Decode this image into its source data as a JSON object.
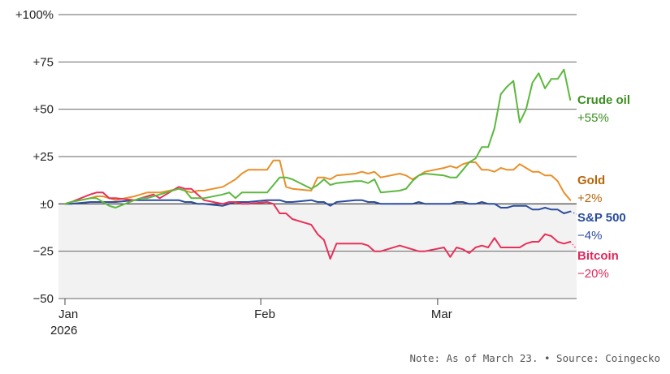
{
  "chart_data": {
    "type": "line",
    "y_ticks": [
      {
        "value": 100,
        "label": "+100%"
      },
      {
        "value": 75,
        "label": "+75"
      },
      {
        "value": 50,
        "label": "+50"
      },
      {
        "value": 25,
        "label": "+25"
      },
      {
        "value": 0,
        "label": "±0"
      },
      {
        "value": -25,
        "label": "−25"
      },
      {
        "value": -50,
        "label": "−50"
      }
    ],
    "ylim": [
      -50,
      100
    ],
    "xlim": [
      "2026-01-01",
      "2026-03-23"
    ],
    "x_ticks": [
      {
        "date": "2026-01-01",
        "label": "Jan",
        "sublabel": "2026"
      },
      {
        "date": "2026-02-01",
        "label": "Feb",
        "sublabel": ""
      },
      {
        "date": "2026-03-01",
        "label": "Mar",
        "sublabel": ""
      }
    ],
    "negative_region_shaded": true,
    "series": [
      {
        "name": "Crude oil",
        "change_label": "+55%",
        "color": "#5cb83f",
        "label_color": "#3a8f1f",
        "points": [
          [
            "2026-01-01",
            0
          ],
          [
            "2026-01-02",
            1
          ],
          [
            "2026-01-05",
            3
          ],
          [
            "2026-01-06",
            3
          ],
          [
            "2026-01-07",
            1
          ],
          [
            "2026-01-08",
            -1
          ],
          [
            "2026-01-09",
            -2
          ],
          [
            "2026-01-12",
            2
          ],
          [
            "2026-01-13",
            3
          ],
          [
            "2026-01-14",
            3
          ],
          [
            "2026-01-15",
            4
          ],
          [
            "2026-01-16",
            5
          ],
          [
            "2026-01-19",
            8
          ],
          [
            "2026-01-20",
            7
          ],
          [
            "2026-01-21",
            3
          ],
          [
            "2026-01-22",
            3
          ],
          [
            "2026-01-23",
            3
          ],
          [
            "2026-01-26",
            5
          ],
          [
            "2026-01-27",
            6
          ],
          [
            "2026-01-28",
            3
          ],
          [
            "2026-01-29",
            6
          ],
          [
            "2026-01-30",
            6
          ],
          [
            "2026-02-02",
            6
          ],
          [
            "2026-02-03",
            10
          ],
          [
            "2026-02-04",
            14
          ],
          [
            "2026-02-05",
            14
          ],
          [
            "2026-02-06",
            13
          ],
          [
            "2026-02-09",
            8
          ],
          [
            "2026-02-10",
            10
          ],
          [
            "2026-02-11",
            13
          ],
          [
            "2026-02-12",
            10
          ],
          [
            "2026-02-13",
            11
          ],
          [
            "2026-02-16",
            12
          ],
          [
            "2026-02-17",
            12
          ],
          [
            "2026-02-18",
            11
          ],
          [
            "2026-02-19",
            13
          ],
          [
            "2026-02-20",
            6
          ],
          [
            "2026-02-23",
            7
          ],
          [
            "2026-02-24",
            8
          ],
          [
            "2026-02-25",
            12
          ],
          [
            "2026-02-26",
            15
          ],
          [
            "2026-02-27",
            16
          ],
          [
            "2026-03-02",
            15
          ],
          [
            "2026-03-03",
            14
          ],
          [
            "2026-03-04",
            14
          ],
          [
            "2026-03-05",
            18
          ],
          [
            "2026-03-06",
            22
          ],
          [
            "2026-03-07",
            24
          ],
          [
            "2026-03-08",
            30
          ],
          [
            "2026-03-09",
            30
          ],
          [
            "2026-03-10",
            40
          ],
          [
            "2026-03-11",
            58
          ],
          [
            "2026-03-12",
            62
          ],
          [
            "2026-03-13",
            65
          ],
          [
            "2026-03-14",
            43
          ],
          [
            "2026-03-15",
            50
          ],
          [
            "2026-03-16",
            64
          ],
          [
            "2026-03-17",
            69
          ],
          [
            "2026-03-18",
            61
          ],
          [
            "2026-03-19",
            66
          ],
          [
            "2026-03-20",
            66
          ],
          [
            "2026-03-21",
            71
          ],
          [
            "2026-03-22",
            55
          ]
        ]
      },
      {
        "name": "Gold",
        "change_label": "+2%",
        "color": "#e8902a",
        "label_color": "#b8650a",
        "points": [
          [
            "2026-01-01",
            0
          ],
          [
            "2026-01-02",
            1
          ],
          [
            "2026-01-05",
            3
          ],
          [
            "2026-01-06",
            4
          ],
          [
            "2026-01-07",
            4
          ],
          [
            "2026-01-08",
            3
          ],
          [
            "2026-01-09",
            2
          ],
          [
            "2026-01-12",
            4
          ],
          [
            "2026-01-13",
            5
          ],
          [
            "2026-01-14",
            6
          ],
          [
            "2026-01-15",
            6
          ],
          [
            "2026-01-16",
            6
          ],
          [
            "2026-01-19",
            8
          ],
          [
            "2026-01-20",
            7
          ],
          [
            "2026-01-21",
            6
          ],
          [
            "2026-01-22",
            7
          ],
          [
            "2026-01-23",
            7
          ],
          [
            "2026-01-26",
            9
          ],
          [
            "2026-01-27",
            11
          ],
          [
            "2026-01-28",
            13
          ],
          [
            "2026-01-29",
            16
          ],
          [
            "2026-01-30",
            18
          ],
          [
            "2026-02-02",
            18
          ],
          [
            "2026-02-03",
            23
          ],
          [
            "2026-02-04",
            23
          ],
          [
            "2026-02-05",
            9
          ],
          [
            "2026-02-06",
            8
          ],
          [
            "2026-02-09",
            7
          ],
          [
            "2026-02-10",
            14
          ],
          [
            "2026-02-11",
            14
          ],
          [
            "2026-02-12",
            13
          ],
          [
            "2026-02-13",
            15
          ],
          [
            "2026-02-16",
            16
          ],
          [
            "2026-02-17",
            17
          ],
          [
            "2026-02-18",
            16
          ],
          [
            "2026-02-19",
            17
          ],
          [
            "2026-02-20",
            14
          ],
          [
            "2026-02-23",
            16
          ],
          [
            "2026-02-24",
            15
          ],
          [
            "2026-02-25",
            13
          ],
          [
            "2026-02-26",
            15
          ],
          [
            "2026-02-27",
            17
          ],
          [
            "2026-03-02",
            19
          ],
          [
            "2026-03-03",
            20
          ],
          [
            "2026-03-04",
            19
          ],
          [
            "2026-03-05",
            21
          ],
          [
            "2026-03-06",
            22
          ],
          [
            "2026-03-07",
            22
          ],
          [
            "2026-03-08",
            18
          ],
          [
            "2026-03-09",
            18
          ],
          [
            "2026-03-10",
            17
          ],
          [
            "2026-03-11",
            19
          ],
          [
            "2026-03-12",
            18
          ],
          [
            "2026-03-13",
            18
          ],
          [
            "2026-03-14",
            21
          ],
          [
            "2026-03-15",
            19
          ],
          [
            "2026-03-16",
            17
          ],
          [
            "2026-03-17",
            17
          ],
          [
            "2026-03-18",
            15
          ],
          [
            "2026-03-19",
            15
          ],
          [
            "2026-03-20",
            12
          ],
          [
            "2026-03-21",
            6
          ],
          [
            "2026-03-22",
            2
          ]
        ]
      },
      {
        "name": "S&P 500",
        "change_label": "−4%",
        "color": "#2b4c9c",
        "label_color": "#2b4c9c",
        "points": [
          [
            "2026-01-01",
            0
          ],
          [
            "2026-01-02",
            0
          ],
          [
            "2026-01-05",
            1
          ],
          [
            "2026-01-06",
            1
          ],
          [
            "2026-01-07",
            1
          ],
          [
            "2026-01-08",
            1
          ],
          [
            "2026-01-09",
            1
          ],
          [
            "2026-01-12",
            2
          ],
          [
            "2026-01-13",
            2
          ],
          [
            "2026-01-14",
            2
          ],
          [
            "2026-01-15",
            2
          ],
          [
            "2026-01-16",
            2
          ],
          [
            "2026-01-19",
            2
          ],
          [
            "2026-01-20",
            1
          ],
          [
            "2026-01-21",
            1
          ],
          [
            "2026-01-22",
            0
          ],
          [
            "2026-01-23",
            0
          ],
          [
            "2026-01-26",
            -1
          ],
          [
            "2026-01-27",
            0
          ],
          [
            "2026-01-28",
            1
          ],
          [
            "2026-01-29",
            1
          ],
          [
            "2026-01-30",
            1
          ],
          [
            "2026-02-02",
            2
          ],
          [
            "2026-02-03",
            2
          ],
          [
            "2026-02-04",
            2
          ],
          [
            "2026-02-05",
            1
          ],
          [
            "2026-02-06",
            1
          ],
          [
            "2026-02-09",
            2
          ],
          [
            "2026-02-10",
            1
          ],
          [
            "2026-02-11",
            1
          ],
          [
            "2026-02-12",
            -1
          ],
          [
            "2026-02-13",
            1
          ],
          [
            "2026-02-16",
            2
          ],
          [
            "2026-02-17",
            2
          ],
          [
            "2026-02-18",
            1
          ],
          [
            "2026-02-19",
            1
          ],
          [
            "2026-02-20",
            0
          ],
          [
            "2026-02-23",
            0
          ],
          [
            "2026-02-24",
            0
          ],
          [
            "2026-02-25",
            0
          ],
          [
            "2026-02-26",
            1
          ],
          [
            "2026-02-27",
            0
          ],
          [
            "2026-03-02",
            0
          ],
          [
            "2026-03-03",
            0
          ],
          [
            "2026-03-04",
            1
          ],
          [
            "2026-03-05",
            1
          ],
          [
            "2026-03-06",
            0
          ],
          [
            "2026-03-07",
            0
          ],
          [
            "2026-03-08",
            1
          ],
          [
            "2026-03-09",
            0
          ],
          [
            "2026-03-10",
            0
          ],
          [
            "2026-03-11",
            -2
          ],
          [
            "2026-03-12",
            -2
          ],
          [
            "2026-03-13",
            -1
          ],
          [
            "2026-03-14",
            -1
          ],
          [
            "2026-03-15",
            -1
          ],
          [
            "2026-03-16",
            -3
          ],
          [
            "2026-03-17",
            -3
          ],
          [
            "2026-03-18",
            -2
          ],
          [
            "2026-03-19",
            -3
          ],
          [
            "2026-03-20",
            -3
          ],
          [
            "2026-03-21",
            -5
          ],
          [
            "2026-03-22",
            -4
          ]
        ]
      },
      {
        "name": "Bitcoin",
        "change_label": "−20%",
        "color": "#e8305a",
        "label_color": "#e0285a",
        "points": [
          [
            "2026-01-01",
            0
          ],
          [
            "2026-01-02",
            1
          ],
          [
            "2026-01-05",
            5
          ],
          [
            "2026-01-06",
            6
          ],
          [
            "2026-01-07",
            6
          ],
          [
            "2026-01-08",
            3
          ],
          [
            "2026-01-09",
            3
          ],
          [
            "2026-01-12",
            2
          ],
          [
            "2026-01-13",
            3
          ],
          [
            "2026-01-14",
            4
          ],
          [
            "2026-01-15",
            5
          ],
          [
            "2026-01-16",
            3
          ],
          [
            "2026-01-19",
            9
          ],
          [
            "2026-01-20",
            8
          ],
          [
            "2026-01-21",
            8
          ],
          [
            "2026-01-22",
            5
          ],
          [
            "2026-01-23",
            2
          ],
          [
            "2026-01-26",
            0
          ],
          [
            "2026-01-27",
            1
          ],
          [
            "2026-01-28",
            1
          ],
          [
            "2026-01-29",
            0
          ],
          [
            "2026-01-30",
            0
          ],
          [
            "2026-02-02",
            1
          ],
          [
            "2026-02-03",
            0
          ],
          [
            "2026-02-04",
            -5
          ],
          [
            "2026-02-05",
            -5
          ],
          [
            "2026-02-06",
            -8
          ],
          [
            "2026-02-09",
            -11
          ],
          [
            "2026-02-10",
            -16
          ],
          [
            "2026-02-11",
            -19
          ],
          [
            "2026-02-12",
            -29
          ],
          [
            "2026-02-13",
            -21
          ],
          [
            "2026-02-16",
            -21
          ],
          [
            "2026-02-17",
            -21
          ],
          [
            "2026-02-18",
            -22
          ],
          [
            "2026-02-19",
            -25
          ],
          [
            "2026-02-20",
            -25
          ],
          [
            "2026-02-23",
            -22
          ],
          [
            "2026-02-24",
            -23
          ],
          [
            "2026-02-25",
            -24
          ],
          [
            "2026-02-26",
            -25
          ],
          [
            "2026-02-27",
            -25
          ],
          [
            "2026-03-02",
            -23
          ],
          [
            "2026-03-03",
            -28
          ],
          [
            "2026-03-04",
            -23
          ],
          [
            "2026-03-05",
            -24
          ],
          [
            "2026-03-06",
            -26
          ],
          [
            "2026-03-07",
            -23
          ],
          [
            "2026-03-08",
            -22
          ],
          [
            "2026-03-09",
            -23
          ],
          [
            "2026-03-10",
            -18
          ],
          [
            "2026-03-11",
            -23
          ],
          [
            "2026-03-12",
            -23
          ],
          [
            "2026-03-13",
            -23
          ],
          [
            "2026-03-14",
            -23
          ],
          [
            "2026-03-15",
            -21
          ],
          [
            "2026-03-16",
            -20
          ],
          [
            "2026-03-17",
            -20
          ],
          [
            "2026-03-18",
            -16
          ],
          [
            "2026-03-19",
            -17
          ],
          [
            "2026-03-20",
            -20
          ],
          [
            "2026-03-21",
            -21
          ],
          [
            "2026-03-22",
            -20
          ]
        ]
      }
    ],
    "note": "Note: As of March 23. • Source: Coingecko"
  }
}
